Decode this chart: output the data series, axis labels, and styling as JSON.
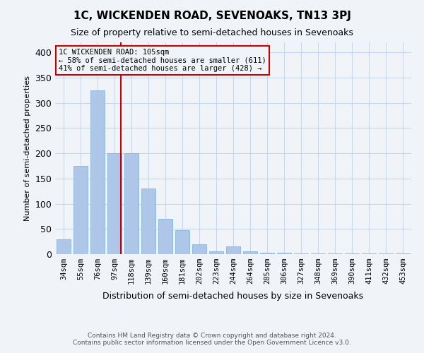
{
  "title": "1C, WICKENDEN ROAD, SEVENOAKS, TN13 3PJ",
  "subtitle": "Size of property relative to semi-detached houses in Sevenoaks",
  "xlabel": "Distribution of semi-detached houses by size in Sevenoaks",
  "ylabel": "Number of semi-detached properties",
  "footer_line1": "Contains HM Land Registry data © Crown copyright and database right 2024.",
  "footer_line2": "Contains public sector information licensed under the Open Government Licence v3.0.",
  "bar_labels": [
    "34sqm",
    "55sqm",
    "76sqm",
    "97sqm",
    "118sqm",
    "139sqm",
    "160sqm",
    "181sqm",
    "202sqm",
    "223sqm",
    "244sqm",
    "264sqm",
    "285sqm",
    "306sqm",
    "327sqm",
    "348sqm",
    "369sqm",
    "390sqm",
    "411sqm",
    "432sqm",
    "453sqm"
  ],
  "bar_values": [
    30,
    175,
    325,
    200,
    200,
    130,
    70,
    48,
    20,
    5,
    15,
    5,
    3,
    3,
    1,
    1,
    1,
    1,
    1,
    1,
    1
  ],
  "bar_color": "#aec6e8",
  "bar_edge_color": "#7aafd4",
  "property_sqm": 105,
  "property_label": "1C WICKENDEN ROAD: 105sqm",
  "smaller_pct": 58,
  "smaller_count": 611,
  "larger_pct": 41,
  "larger_count": 428,
  "vline_color": "#cc0000",
  "ylim": [
    0,
    420
  ],
  "yticks": [
    0,
    50,
    100,
    150,
    200,
    250,
    300,
    350,
    400
  ],
  "grid_color": "#c8d8e8",
  "background_color": "#f0f4f8"
}
